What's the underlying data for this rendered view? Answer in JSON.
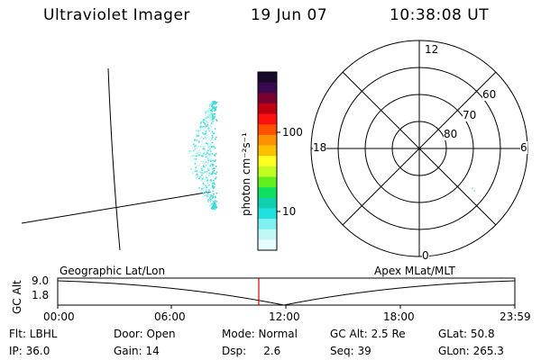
{
  "header": {
    "instrument": "Ultraviolet Imager",
    "date": "19 Jun 07",
    "time": "10:38:08 UT"
  },
  "colorbar": {
    "label": "photon cm⁻²s⁻¹",
    "ticks": [
      "100",
      "10"
    ],
    "colors": [
      "#1a0a2a",
      "#3a0a50",
      "#7a0030",
      "#c00010",
      "#ff1010",
      "#ff5000",
      "#ff9000",
      "#ffc000",
      "#ffff20",
      "#c0ff20",
      "#60f020",
      "#10e060",
      "#10d0b0",
      "#20e0e0",
      "#80f0f0",
      "#c0f8f8",
      "#e8ffff"
    ]
  },
  "polar_plot": {
    "mlt_labels": {
      "top": "12",
      "bottom": "0",
      "left": "18",
      "right": "6"
    },
    "lat_labels": [
      "60",
      "70",
      "80"
    ]
  },
  "timeline": {
    "ylabel": "GC Alt",
    "yticks": [
      "9.0",
      "1.8"
    ],
    "left_label": "Geographic Lat/Lon",
    "right_label": "Apex MLat/MLT",
    "xticks": [
      "00:00",
      "06:00",
      "12:00",
      "18:00",
      "23:59"
    ],
    "marker_color": "#e00000"
  },
  "info": {
    "filter": "Flt: LBHL",
    "door": "Door: Open",
    "mode": "Mode: Normal",
    "gc_alt": "GC Alt: 2.5 Re",
    "glat": "GLat:  50.8",
    "ip": "IP: 36.0",
    "gain": "Gain: 14",
    "dsp": "Dsp:     2.6",
    "seq": "Seq: 39",
    "glon": "GLon: 265.3"
  }
}
